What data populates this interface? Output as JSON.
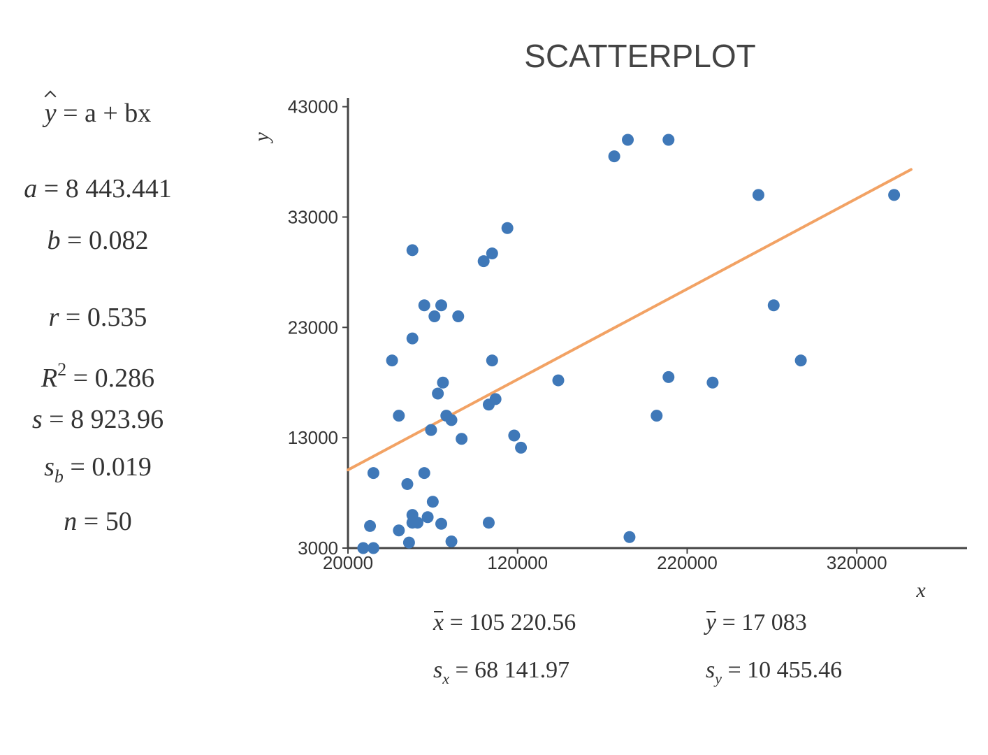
{
  "chart_data": {
    "type": "scatter",
    "title": "SCATTERPLOT",
    "xlabel": "x",
    "ylabel": "y",
    "xlim": [
      20000,
      385000
    ],
    "ylim": [
      3000,
      43800
    ],
    "x_ticks": [
      "20000",
      "120000",
      "220000",
      "320000"
    ],
    "y_ticks": [
      "3000",
      "13000",
      "23000",
      "33000",
      "43000"
    ],
    "points": [
      [
        29000,
        3000
      ],
      [
        35000,
        3000
      ],
      [
        33000,
        5000
      ],
      [
        35000,
        9800
      ],
      [
        50000,
        4600
      ],
      [
        55000,
        8800
      ],
      [
        50000,
        15000
      ],
      [
        46000,
        20000
      ],
      [
        61000,
        5300
      ],
      [
        58000,
        6000
      ],
      [
        58000,
        30000
      ],
      [
        58000,
        22000
      ],
      [
        58000,
        5300
      ],
      [
        56000,
        3500
      ],
      [
        65000,
        25000
      ],
      [
        65000,
        9800
      ],
      [
        67000,
        5800
      ],
      [
        69000,
        13700
      ],
      [
        70000,
        7200
      ],
      [
        71000,
        24000
      ],
      [
        73000,
        17000
      ],
      [
        75000,
        25000
      ],
      [
        75000,
        5200
      ],
      [
        76000,
        18000
      ],
      [
        78000,
        15000
      ],
      [
        81000,
        14600
      ],
      [
        81000,
        3600
      ],
      [
        85000,
        24000
      ],
      [
        87000,
        12900
      ],
      [
        100000,
        29000
      ],
      [
        103000,
        16000
      ],
      [
        103000,
        5300
      ],
      [
        105000,
        29700
      ],
      [
        105000,
        20000
      ],
      [
        107000,
        16500
      ],
      [
        114000,
        32000
      ],
      [
        118000,
        13200
      ],
      [
        122000,
        12100
      ],
      [
        144000,
        18200
      ],
      [
        177000,
        38500
      ],
      [
        185000,
        40000
      ],
      [
        186000,
        4000
      ],
      [
        202000,
        15000
      ],
      [
        209000,
        40000
      ],
      [
        209000,
        18500
      ],
      [
        235000,
        18000
      ],
      [
        262000,
        35000
      ],
      [
        271000,
        25000
      ],
      [
        287000,
        20000
      ],
      [
        342000,
        35000
      ]
    ],
    "regression": {
      "a": 8443.441,
      "b": 0.082
    },
    "colors": {
      "points": "#3f78b8",
      "line": "#f2a264",
      "axis": "#444444",
      "text": "#333333"
    }
  },
  "stats": {
    "equation": "= a + bx",
    "a": "= 8 443.441",
    "b": "= 0.082",
    "r": "= 0.535",
    "r2": "= 0.286",
    "s": "= 8 923.96",
    "sb": "= 0.019",
    "n": "= 50"
  },
  "bottom_stats": {
    "xbar": "= 105 220.56",
    "ybar": "= 17 083",
    "sx": "= 68 141.97",
    "sy": "= 10 455.46"
  }
}
